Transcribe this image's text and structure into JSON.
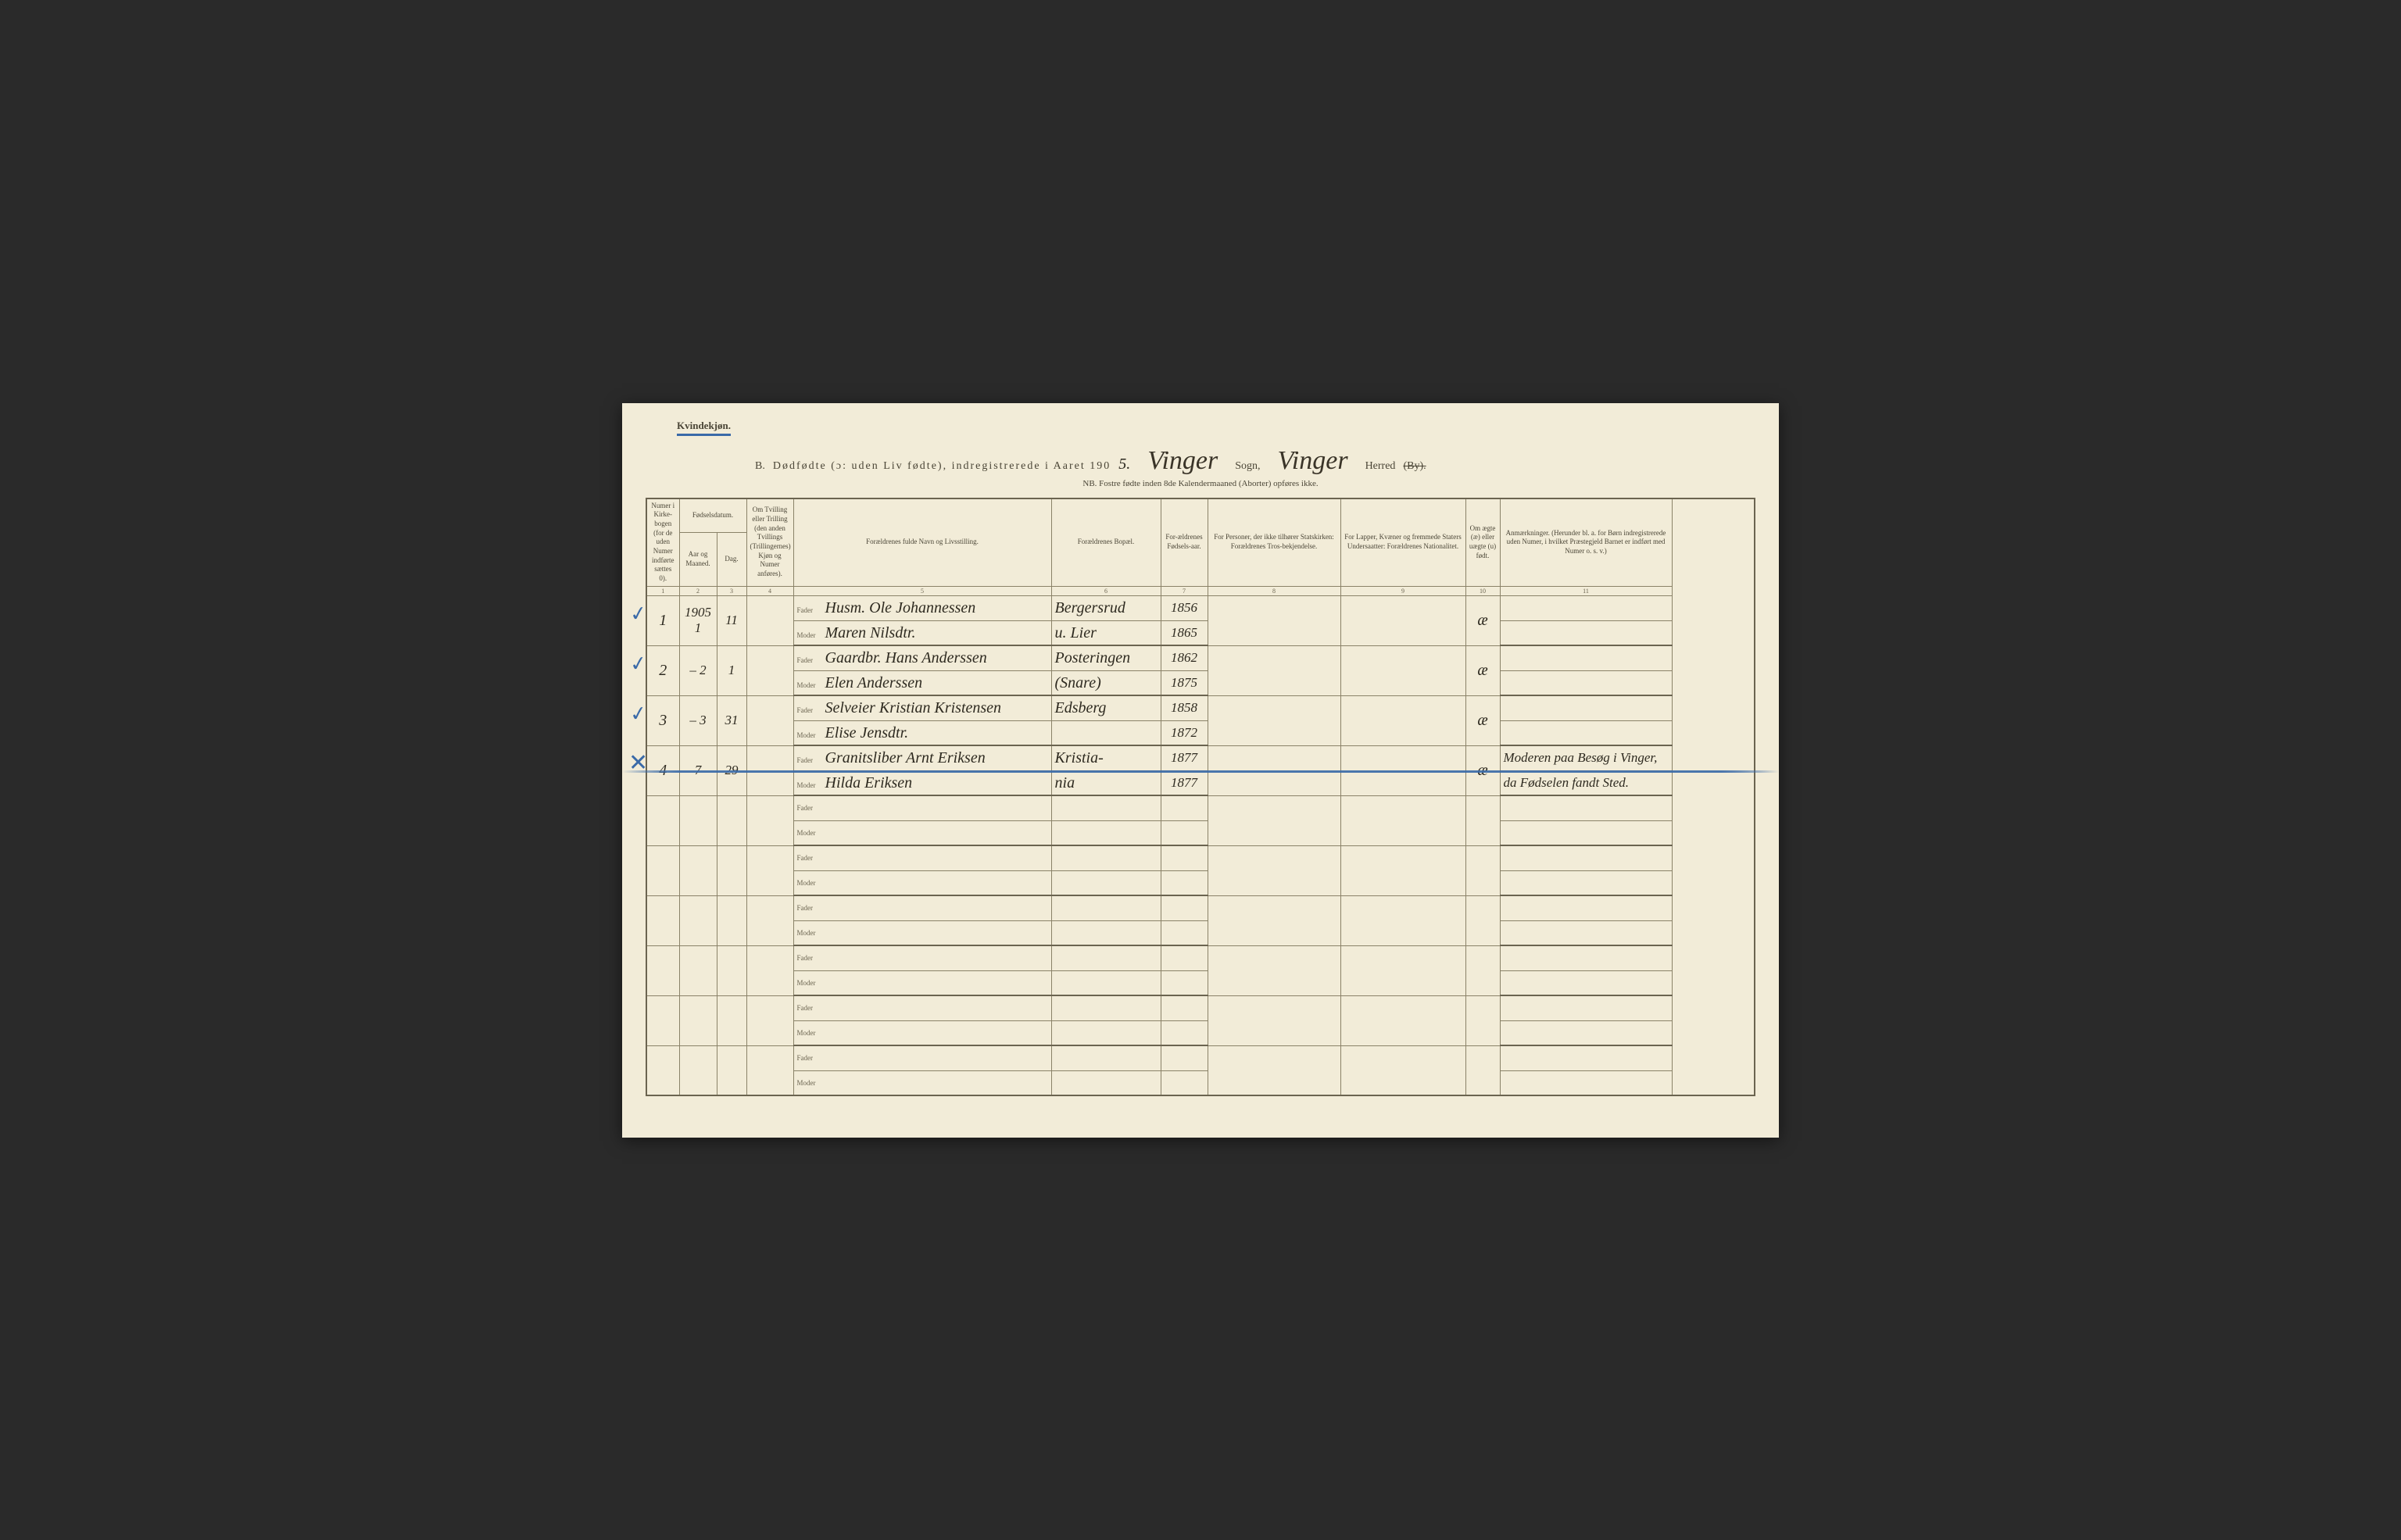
{
  "top_label": "Kvindekjøn.",
  "title": {
    "prefix": "B.",
    "main": "Dødfødte (ɔ: uden Liv fødte), indregistrerede i Aaret 190",
    "year_suffix": "5.",
    "sogn_value": "Vinger",
    "sogn_label": "Sogn,",
    "herred_value": "Vinger",
    "herred_label": "Herred",
    "herred_strike": "(By)."
  },
  "subheader": "NB.  Fostre fødte inden 8de Kalendermaaned (Aborter) opføres ikke.",
  "columns": {
    "c1": "Numer i Kirke-bogen (for de uden Numer indførte sættes 0).",
    "c2": "Aar og Maaned.",
    "c3": "Dag.",
    "c2_3_group": "Fødselsdatum.",
    "c4": "Om Tvilling eller Trilling (den anden Tvillings (Trillingernes) Kjøn og Numer anføres).",
    "c5": "Forældrenes fulde Navn og Livsstilling.",
    "c6": "Forældrenes Bopæl.",
    "c7": "For-ældrenes Fødsels-aar.",
    "c8": "For Personer, der ikke tilhører Statskirken: Forældrenes Tros-bekjendelse.",
    "c9": "For Lapper, Kvæner og fremmede Staters Undersaatter: Forældrenes Nationalitet.",
    "c10": "Om ægte (æ) eller uægte (u) født.",
    "c11": "Anmærkninger. (Herunder bl. a. for Børn indregistrerede uden Numer, i hvilket Præstegjeld Barnet er indført med Numer o. s. v.)"
  },
  "colnums": [
    "1",
    "2",
    "3",
    "4",
    "5",
    "6",
    "7",
    "8",
    "9",
    "10",
    "11"
  ],
  "fm": {
    "fader": "Fader",
    "moder": "Moder"
  },
  "rows": [
    {
      "check": "✓",
      "num": "1",
      "aar": "1905 1",
      "dag": "11",
      "fader": "Husm. Ole Johannessen",
      "moder": "Maren Nilsdtr.",
      "bopael_f": "Bergersrud",
      "bopael_m": "u. Lier",
      "faar_f": "1856",
      "faar_m": "1865",
      "aegte": "æ"
    },
    {
      "check": "✓",
      "num": "2",
      "aar": "– 2",
      "dag": "1",
      "fader": "Gaardbr. Hans Anderssen",
      "moder": "Elen Anderssen",
      "bopael_f": "Posteringen",
      "bopael_m": "(Snare)",
      "faar_f": "1862",
      "faar_m": "1875",
      "aegte": "æ"
    },
    {
      "check": "✓",
      "num": "3",
      "aar": "– 3",
      "dag": "31",
      "fader": "Selveier Kristian Kristensen",
      "moder": "Elise Jensdtr.",
      "bopael_f": "Edsberg",
      "bopael_m": "",
      "faar_f": "1858",
      "faar_m": "1872",
      "aegte": "æ"
    },
    {
      "check": "✕",
      "strike": true,
      "num": "4",
      "aar": "7",
      "dag": "29",
      "fader": "Granitsliber Arnt Eriksen",
      "moder": "Hilda Eriksen",
      "bopael_f": "Kristia-",
      "bopael_m": "nia",
      "faar_f": "1877",
      "faar_m": "1877",
      "aegte": "æ",
      "anm_f": "Moderen paa Besøg i Vinger,",
      "anm_m": "da Fødselen fandt Sted."
    }
  ],
  "empty_pairs": 6,
  "colors": {
    "paper": "#f2ecd8",
    "ink": "#4a4536",
    "hand": "#2e2a20",
    "blue": "#3a6aa8",
    "rule": "#6b6450"
  }
}
